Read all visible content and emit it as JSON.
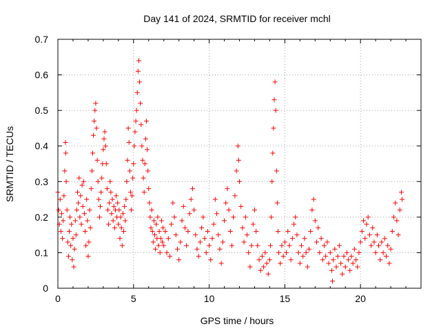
{
  "chart_data": {
    "type": "scatter",
    "title": "Day 141 of 2024, SRMTID for receiver mchl",
    "xlabel": "GPS time / hours",
    "ylabel": "SRMTID / TECUs",
    "xlim": [
      0,
      24
    ],
    "ylim": [
      0,
      0.7
    ],
    "xticks": [
      0,
      5,
      10,
      15,
      20
    ],
    "xtick_labels": [
      "0",
      "5",
      "10",
      "15",
      "20"
    ],
    "yticks": [
      0,
      0.1,
      0.2,
      0.3,
      0.4,
      0.5,
      0.6,
      0.7
    ],
    "ytick_labels": [
      "0",
      "0.1",
      "0.2",
      "0.3",
      "0.4",
      "0.5",
      "0.6",
      "0.7"
    ],
    "grid": true,
    "marker": "+",
    "color": "#ff0000",
    "series": [
      {
        "name": "SRMTID",
        "points": [
          [
            0.0,
            0.27
          ],
          [
            0.05,
            0.22
          ],
          [
            0.1,
            0.18
          ],
          [
            0.15,
            0.25
          ],
          [
            0.2,
            0.16
          ],
          [
            0.25,
            0.21
          ],
          [
            0.3,
            0.14
          ],
          [
            0.35,
            0.19
          ],
          [
            0.4,
            0.26
          ],
          [
            0.45,
            0.33
          ],
          [
            0.5,
            0.41
          ],
          [
            0.52,
            0.38
          ],
          [
            0.55,
            0.3
          ],
          [
            0.6,
            0.22
          ],
          [
            0.65,
            0.13
          ],
          [
            0.7,
            0.09
          ],
          [
            0.75,
            0.16
          ],
          [
            0.8,
            0.2
          ],
          [
            0.85,
            0.12
          ],
          [
            0.9,
            0.18
          ],
          [
            0.95,
            0.08
          ],
          [
            1.0,
            0.14
          ],
          [
            1.05,
            0.06
          ],
          [
            1.1,
            0.11
          ],
          [
            1.15,
            0.19
          ],
          [
            1.2,
            0.15
          ],
          [
            1.25,
            0.22
          ],
          [
            1.3,
            0.27
          ],
          [
            1.35,
            0.24
          ],
          [
            1.4,
            0.31
          ],
          [
            1.45,
            0.2
          ],
          [
            1.5,
            0.26
          ],
          [
            1.55,
            0.18
          ],
          [
            1.6,
            0.29
          ],
          [
            1.65,
            0.23
          ],
          [
            1.7,
            0.3
          ],
          [
            1.75,
            0.21
          ],
          [
            1.8,
            0.16
          ],
          [
            1.85,
            0.12
          ],
          [
            1.9,
            0.25
          ],
          [
            1.95,
            0.19
          ],
          [
            2.0,
            0.09
          ],
          [
            2.05,
            0.13
          ],
          [
            2.1,
            0.22
          ],
          [
            2.15,
            0.17
          ],
          [
            2.2,
            0.28
          ],
          [
            2.25,
            0.33
          ],
          [
            2.3,
            0.38
          ],
          [
            2.35,
            0.43
          ],
          [
            2.4,
            0.47
          ],
          [
            2.45,
            0.5
          ],
          [
            2.5,
            0.52
          ],
          [
            2.55,
            0.45
          ],
          [
            2.6,
            0.36
          ],
          [
            2.65,
            0.3
          ],
          [
            2.7,
            0.25
          ],
          [
            2.75,
            0.2
          ],
          [
            2.8,
            0.23
          ],
          [
            2.85,
            0.27
          ],
          [
            2.9,
            0.31
          ],
          [
            2.95,
            0.35
          ],
          [
            3.0,
            0.39
          ],
          [
            3.05,
            0.42
          ],
          [
            3.1,
            0.44
          ],
          [
            3.15,
            0.4
          ],
          [
            3.2,
            0.35
          ],
          [
            3.25,
            0.28
          ],
          [
            3.3,
            0.22
          ],
          [
            3.35,
            0.18
          ],
          [
            3.4,
            0.24
          ],
          [
            3.45,
            0.3
          ],
          [
            3.5,
            0.27
          ],
          [
            3.55,
            0.21
          ],
          [
            3.6,
            0.25
          ],
          [
            3.65,
            0.19
          ],
          [
            3.7,
            0.23
          ],
          [
            3.75,
            0.17
          ],
          [
            3.8,
            0.22
          ],
          [
            3.85,
            0.26
          ],
          [
            3.9,
            0.2
          ],
          [
            3.95,
            0.24
          ],
          [
            4.0,
            0.18
          ],
          [
            4.05,
            0.22
          ],
          [
            4.1,
            0.14
          ],
          [
            4.15,
            0.2
          ],
          [
            4.2,
            0.17
          ],
          [
            4.25,
            0.12
          ],
          [
            4.3,
            0.21
          ],
          [
            4.35,
            0.16
          ],
          [
            4.4,
            0.23
          ],
          [
            4.45,
            0.19
          ],
          [
            4.5,
            0.25
          ],
          [
            4.55,
            0.3
          ],
          [
            4.6,
            0.36
          ],
          [
            4.65,
            0.45
          ],
          [
            4.7,
            0.41
          ],
          [
            4.75,
            0.33
          ],
          [
            4.8,
            0.27
          ],
          [
            4.85,
            0.22
          ],
          [
            4.9,
            0.26
          ],
          [
            4.95,
            0.31
          ],
          [
            5.0,
            0.35
          ],
          [
            5.05,
            0.4
          ],
          [
            5.1,
            0.44
          ],
          [
            5.15,
            0.47
          ],
          [
            5.2,
            0.5
          ],
          [
            5.25,
            0.55
          ],
          [
            5.3,
            0.61
          ],
          [
            5.35,
            0.64
          ],
          [
            5.4,
            0.58
          ],
          [
            5.45,
            0.52
          ],
          [
            5.5,
            0.46
          ],
          [
            5.55,
            0.4
          ],
          [
            5.6,
            0.36
          ],
          [
            5.65,
            0.31
          ],
          [
            5.7,
            0.27
          ],
          [
            5.75,
            0.35
          ],
          [
            5.8,
            0.42
          ],
          [
            5.85,
            0.47
          ],
          [
            5.9,
            0.39
          ],
          [
            5.95,
            0.33
          ],
          [
            6.0,
            0.28
          ],
          [
            6.05,
            0.24
          ],
          [
            6.1,
            0.2
          ],
          [
            6.15,
            0.17
          ],
          [
            6.2,
            0.22
          ],
          [
            6.25,
            0.16
          ],
          [
            6.3,
            0.13
          ],
          [
            6.35,
            0.19
          ],
          [
            6.4,
            0.15
          ],
          [
            6.45,
            0.11
          ],
          [
            6.5,
            0.18
          ],
          [
            6.55,
            0.14
          ],
          [
            6.6,
            0.2
          ],
          [
            6.65,
            0.12
          ],
          [
            6.7,
            0.16
          ],
          [
            6.75,
            0.1
          ],
          [
            6.8,
            0.14
          ],
          [
            6.85,
            0.19
          ],
          [
            6.9,
            0.13
          ],
          [
            6.95,
            0.17
          ],
          [
            7.0,
            0.12
          ],
          [
            7.1,
            0.16
          ],
          [
            7.2,
            0.1
          ],
          [
            7.3,
            0.14
          ],
          [
            7.4,
            0.09
          ],
          [
            7.5,
            0.18
          ],
          [
            7.6,
            0.24
          ],
          [
            7.7,
            0.2
          ],
          [
            7.8,
            0.15
          ],
          [
            7.9,
            0.11
          ],
          [
            8.0,
            0.08
          ],
          [
            8.1,
            0.13
          ],
          [
            8.2,
            0.19
          ],
          [
            8.3,
            0.23
          ],
          [
            8.4,
            0.17
          ],
          [
            8.5,
            0.12
          ],
          [
            8.6,
            0.16
          ],
          [
            8.7,
            0.21
          ],
          [
            8.8,
            0.25
          ],
          [
            8.9,
            0.28
          ],
          [
            9.0,
            0.22
          ],
          [
            9.1,
            0.15
          ],
          [
            9.2,
            0.11
          ],
          [
            9.3,
            0.09
          ],
          [
            9.4,
            0.13
          ],
          [
            9.5,
            0.17
          ],
          [
            9.6,
            0.2
          ],
          [
            9.7,
            0.14
          ],
          [
            9.8,
            0.1
          ],
          [
            9.9,
            0.16
          ],
          [
            10.0,
            0.12
          ],
          [
            10.1,
            0.08
          ],
          [
            10.2,
            0.14
          ],
          [
            10.3,
            0.18
          ],
          [
            10.4,
            0.25
          ],
          [
            10.5,
            0.21
          ],
          [
            10.6,
            0.15
          ],
          [
            10.7,
            0.11
          ],
          [
            10.8,
            0.07
          ],
          [
            10.9,
            0.13
          ],
          [
            11.0,
            0.19
          ],
          [
            11.1,
            0.24
          ],
          [
            11.2,
            0.28
          ],
          [
            11.3,
            0.22
          ],
          [
            11.4,
            0.16
          ],
          [
            11.5,
            0.12
          ],
          [
            11.6,
            0.2
          ],
          [
            11.7,
            0.26
          ],
          [
            11.8,
            0.33
          ],
          [
            11.9,
            0.4
          ],
          [
            11.95,
            0.36
          ],
          [
            12.0,
            0.3
          ],
          [
            12.1,
            0.23
          ],
          [
            12.2,
            0.17
          ],
          [
            12.3,
            0.13
          ],
          [
            12.4,
            0.2
          ],
          [
            12.5,
            0.15
          ],
          [
            12.6,
            0.1
          ],
          [
            12.7,
            0.06
          ],
          [
            12.8,
            0.12
          ],
          [
            12.9,
            0.18
          ],
          [
            13.0,
            0.22
          ],
          [
            13.1,
            0.16
          ],
          [
            13.2,
            0.12
          ],
          [
            13.3,
            0.08
          ],
          [
            13.4,
            0.05
          ],
          [
            13.5,
            0.09
          ],
          [
            13.6,
            0.06
          ],
          [
            13.7,
            0.1
          ],
          [
            13.8,
            0.07
          ],
          [
            13.9,
            0.04
          ],
          [
            14.0,
            0.08
          ],
          [
            14.05,
            0.12
          ],
          [
            14.1,
            0.2
          ],
          [
            14.15,
            0.3
          ],
          [
            14.2,
            0.38
          ],
          [
            14.25,
            0.45
          ],
          [
            14.3,
            0.53
          ],
          [
            14.35,
            0.58
          ],
          [
            14.4,
            0.5
          ],
          [
            14.45,
            0.33
          ],
          [
            14.5,
            0.24
          ],
          [
            14.55,
            0.16
          ],
          [
            14.6,
            0.1
          ],
          [
            14.7,
            0.07
          ],
          [
            14.8,
            0.12
          ],
          [
            14.9,
            0.09
          ],
          [
            15.0,
            0.13
          ],
          [
            15.1,
            0.1
          ],
          [
            15.2,
            0.16
          ],
          [
            15.3,
            0.12
          ],
          [
            15.4,
            0.08
          ],
          [
            15.5,
            0.14
          ],
          [
            15.6,
            0.18
          ],
          [
            15.7,
            0.2
          ],
          [
            15.8,
            0.15
          ],
          [
            15.9,
            0.1
          ],
          [
            16.0,
            0.07
          ],
          [
            16.1,
            0.12
          ],
          [
            16.2,
            0.09
          ],
          [
            16.3,
            0.14
          ],
          [
            16.4,
            0.1
          ],
          [
            16.5,
            0.06
          ],
          [
            16.6,
            0.11
          ],
          [
            16.7,
            0.16
          ],
          [
            16.8,
            0.22
          ],
          [
            16.9,
            0.25
          ],
          [
            17.0,
            0.19
          ],
          [
            17.1,
            0.13
          ],
          [
            17.2,
            0.17
          ],
          [
            17.3,
            0.1
          ],
          [
            17.4,
            0.14
          ],
          [
            17.5,
            0.08
          ],
          [
            17.6,
            0.12
          ],
          [
            17.7,
            0.09
          ],
          [
            17.8,
            0.13
          ],
          [
            17.9,
            0.07
          ],
          [
            18.0,
            0.1
          ],
          [
            18.1,
            0.05
          ],
          [
            18.15,
            0.02
          ],
          [
            18.2,
            0.08
          ],
          [
            18.3,
            0.11
          ],
          [
            18.4,
            0.06
          ],
          [
            18.5,
            0.09
          ],
          [
            18.6,
            0.12
          ],
          [
            18.7,
            0.07
          ],
          [
            18.8,
            0.04
          ],
          [
            18.9,
            0.09
          ],
          [
            19.0,
            0.06
          ],
          [
            19.1,
            0.1
          ],
          [
            19.2,
            0.08
          ],
          [
            19.3,
            0.05
          ],
          [
            19.4,
            0.09
          ],
          [
            19.5,
            0.07
          ],
          [
            19.6,
            0.11
          ],
          [
            19.7,
            0.08
          ],
          [
            19.8,
            0.06
          ],
          [
            19.9,
            0.1
          ],
          [
            20.0,
            0.13
          ],
          [
            20.1,
            0.16
          ],
          [
            20.2,
            0.19
          ],
          [
            20.3,
            0.14
          ],
          [
            20.4,
            0.18
          ],
          [
            20.5,
            0.2
          ],
          [
            20.6,
            0.15
          ],
          [
            20.7,
            0.12
          ],
          [
            20.8,
            0.17
          ],
          [
            20.9,
            0.13
          ],
          [
            21.0,
            0.1
          ],
          [
            21.1,
            0.15
          ],
          [
            21.2,
            0.12
          ],
          [
            21.3,
            0.08
          ],
          [
            21.4,
            0.13
          ],
          [
            21.5,
            0.1
          ],
          [
            21.6,
            0.14
          ],
          [
            21.7,
            0.09
          ],
          [
            21.8,
            0.12
          ],
          [
            21.9,
            0.07
          ],
          [
            22.0,
            0.11
          ],
          [
            22.1,
            0.16
          ],
          [
            22.2,
            0.2
          ],
          [
            22.3,
            0.24
          ],
          [
            22.4,
            0.19
          ],
          [
            22.5,
            0.15
          ],
          [
            22.6,
            0.22
          ],
          [
            22.7,
            0.27
          ],
          [
            22.75,
            0.25
          ]
        ]
      }
    ]
  }
}
